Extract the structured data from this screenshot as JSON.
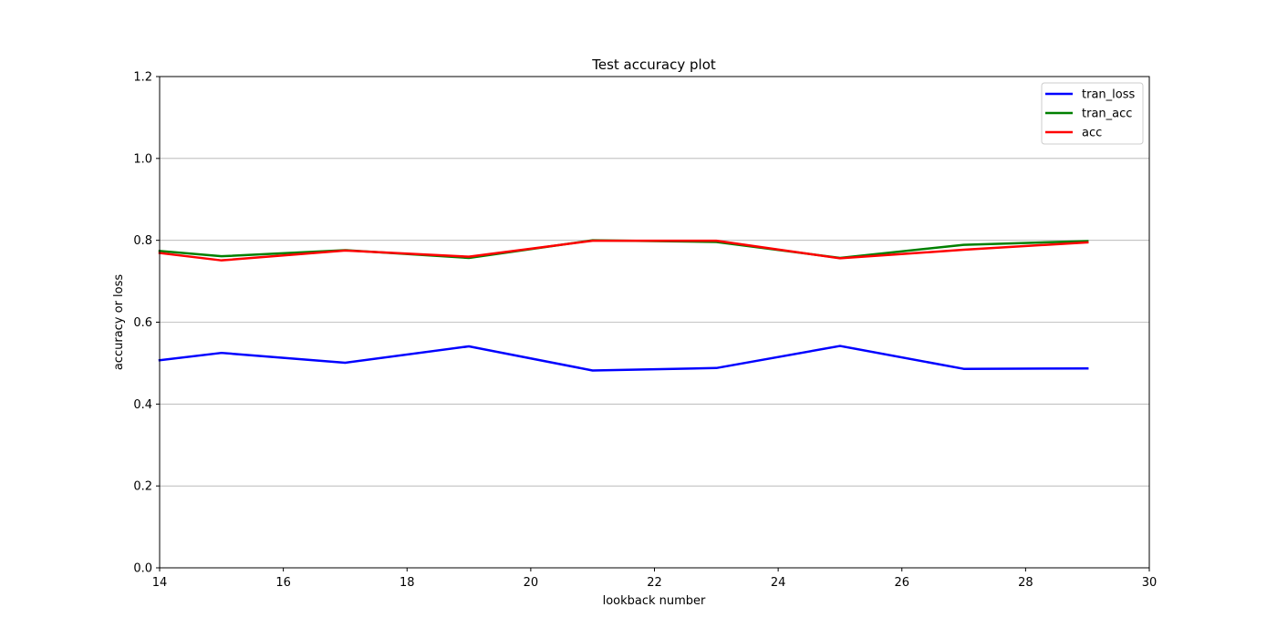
{
  "chart_data": {
    "type": "line",
    "title": "Test accuracy plot",
    "xlabel": "lookback number",
    "ylabel": "accuracy or loss",
    "xlim": [
      14,
      30
    ],
    "ylim": [
      0.0,
      1.2
    ],
    "x_ticks": [
      14,
      16,
      18,
      20,
      22,
      24,
      26,
      28,
      30
    ],
    "y_ticks": [
      0.0,
      0.2,
      0.4,
      0.6,
      0.8,
      1.0,
      1.2
    ],
    "x_tick_labels": [
      "14",
      "16",
      "18",
      "20",
      "22",
      "24",
      "26",
      "28",
      "30"
    ],
    "y_tick_labels": [
      "0.0",
      "0.2",
      "0.4",
      "0.6",
      "0.8",
      "1.0",
      "1.2"
    ],
    "grid": "horizontal",
    "legend_position": "top-right",
    "x": [
      14,
      15,
      17,
      19,
      21,
      23,
      25,
      27,
      29
    ],
    "series": [
      {
        "name": "tran_loss",
        "color": "#0000ff",
        "values": [
          0.507,
          0.525,
          0.501,
          0.541,
          0.482,
          0.488,
          0.542,
          0.486,
          0.487
        ]
      },
      {
        "name": "tran_acc",
        "color": "#008000",
        "values": [
          0.774,
          0.761,
          0.776,
          0.757,
          0.8,
          0.796,
          0.757,
          0.789,
          0.798
        ]
      },
      {
        "name": "acc",
        "color": "#ff0000",
        "values": [
          0.769,
          0.751,
          0.775,
          0.76,
          0.799,
          0.799,
          0.756,
          0.777,
          0.795
        ]
      }
    ]
  }
}
